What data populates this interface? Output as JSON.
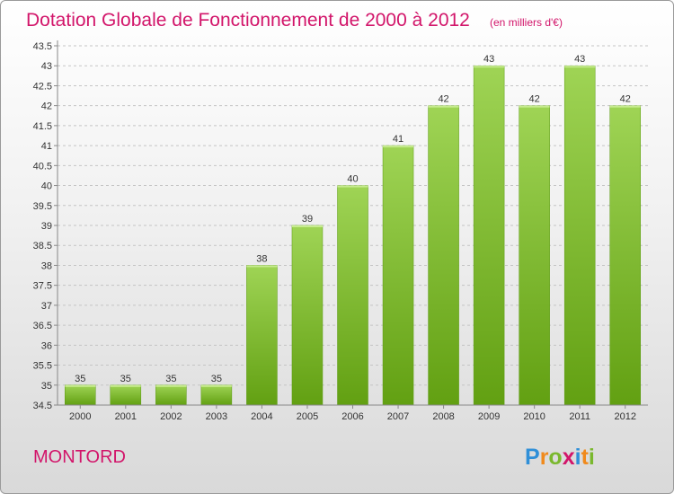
{
  "chart_data": {
    "type": "bar",
    "title": "Dotation Globale de Fonctionnement de 2000 à 2012",
    "subtitle": "(en milliers d'€)",
    "categories": [
      "2000",
      "2001",
      "2002",
      "2003",
      "2004",
      "2005",
      "2006",
      "2007",
      "2008",
      "2009",
      "2010",
      "2011",
      "2012"
    ],
    "values": [
      35,
      35,
      35,
      35,
      38,
      39,
      40,
      41,
      42,
      43,
      42,
      43,
      42
    ],
    "data_labels": [
      "35",
      "35",
      "35",
      "35",
      "38",
      "39",
      "40",
      "41",
      "42",
      "43",
      "42",
      "43",
      "42"
    ],
    "yticks": [
      "34.5",
      "35",
      "35.5",
      "36",
      "36.5",
      "37",
      "37.5",
      "38",
      "38.5",
      "39",
      "39.5",
      "40",
      "40.5",
      "41",
      "41.5",
      "42",
      "42.5",
      "43",
      "43.5"
    ],
    "ylim": [
      34.5,
      43.5
    ],
    "xlabel": "",
    "ylabel": "",
    "grid": true,
    "bar_color": "#7cc02c"
  },
  "place_name": "MONTORD",
  "logo": {
    "letters": [
      "P",
      "r",
      "o",
      "x",
      "i",
      "t",
      "i"
    ],
    "colors": [
      "#2f8fd8",
      "#f08a1c",
      "#7ab82e",
      "#d2156a",
      "#2f8fd8",
      "#f08a1c",
      "#7ab82e"
    ]
  }
}
